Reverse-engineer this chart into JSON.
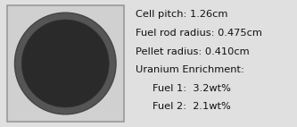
{
  "fig_width": 3.33,
  "fig_height": 1.42,
  "dpi": 100,
  "bg_color": "#e0e0e0",
  "cell_bg_color": "#d0d0d0",
  "outer_circle_color": "#555555",
  "inner_circle_color": "#2a2a2a",
  "text_lines": [
    "Cell pitch: 1.26cm",
    "Fuel rod radius: 0.475cm",
    "Pellet radius: 0.410cm",
    "Uranium Enrichment:"
  ],
  "indented_lines": [
    "Fuel 1:  3.2wt%",
    "Fuel 2:  2.1wt%"
  ],
  "text_fontsize": 8.2,
  "text_color": "#111111",
  "border_color": "#999999"
}
